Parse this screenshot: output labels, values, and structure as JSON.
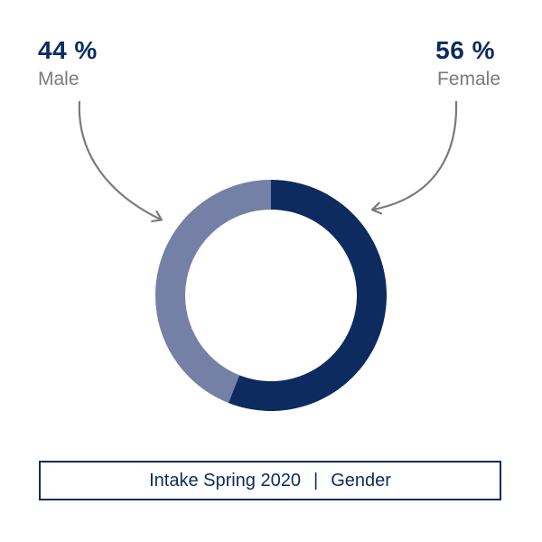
{
  "colors": {
    "female": "#0d2b5e",
    "male": "#7480a6",
    "arrow": "#7a7a7a",
    "text_label": "#7a7a7a",
    "caption_border": "#0d2b5e"
  },
  "chart_data": {
    "type": "pie",
    "variant": "donut",
    "title": "Intake Spring 2020",
    "subtitle": "Gender",
    "slices": [
      {
        "label": "Female",
        "value": 56,
        "display": "56 %"
      },
      {
        "label": "Male",
        "value": 44,
        "display": "44 %"
      }
    ]
  },
  "caption": {
    "left": "Intake Spring 2020",
    "separator": "|",
    "right": "Gender"
  }
}
